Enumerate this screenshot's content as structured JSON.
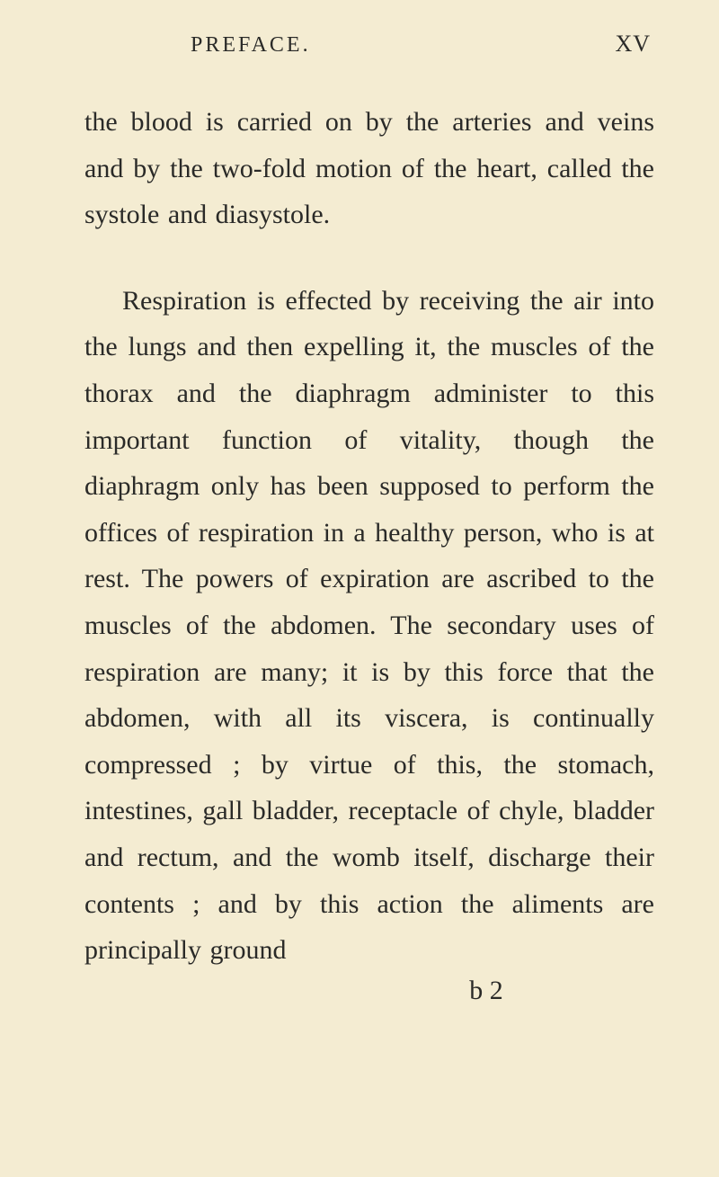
{
  "page": {
    "running_head": "PREFACE.",
    "page_number": "XV",
    "signature_mark": "b 2",
    "background_color": "#f4ecd2",
    "text_color": "#2a2a28",
    "body_fontsize": 30,
    "head_fontsize": 24,
    "line_height": 1.72
  },
  "paragraphs": [
    "the blood is carried on by the arteries and veins and by the two-fold motion of the heart, called the systole and diasystole.",
    "Respiration is effected by receiving the air into the lungs and then expelling it, the muscles of the thorax and the dia­phragm administer to this important func­tion of vitality, though the diaphragm only has been supposed to perform the offices of respiration in a healthy person, who is at rest. The powers of expira­tion are ascribed to the muscles of the abdomen. The secondary uses of respi­ration are many; it is by this force that the abdomen, with all its viscera, is con­tinually compressed ; by virtue of this, the stomach, intestines, gall bladder, receptacle of chyle, bladder and rectum, and the womb itself, discharge their contents ; and by this action the aliments are principally ground"
  ]
}
